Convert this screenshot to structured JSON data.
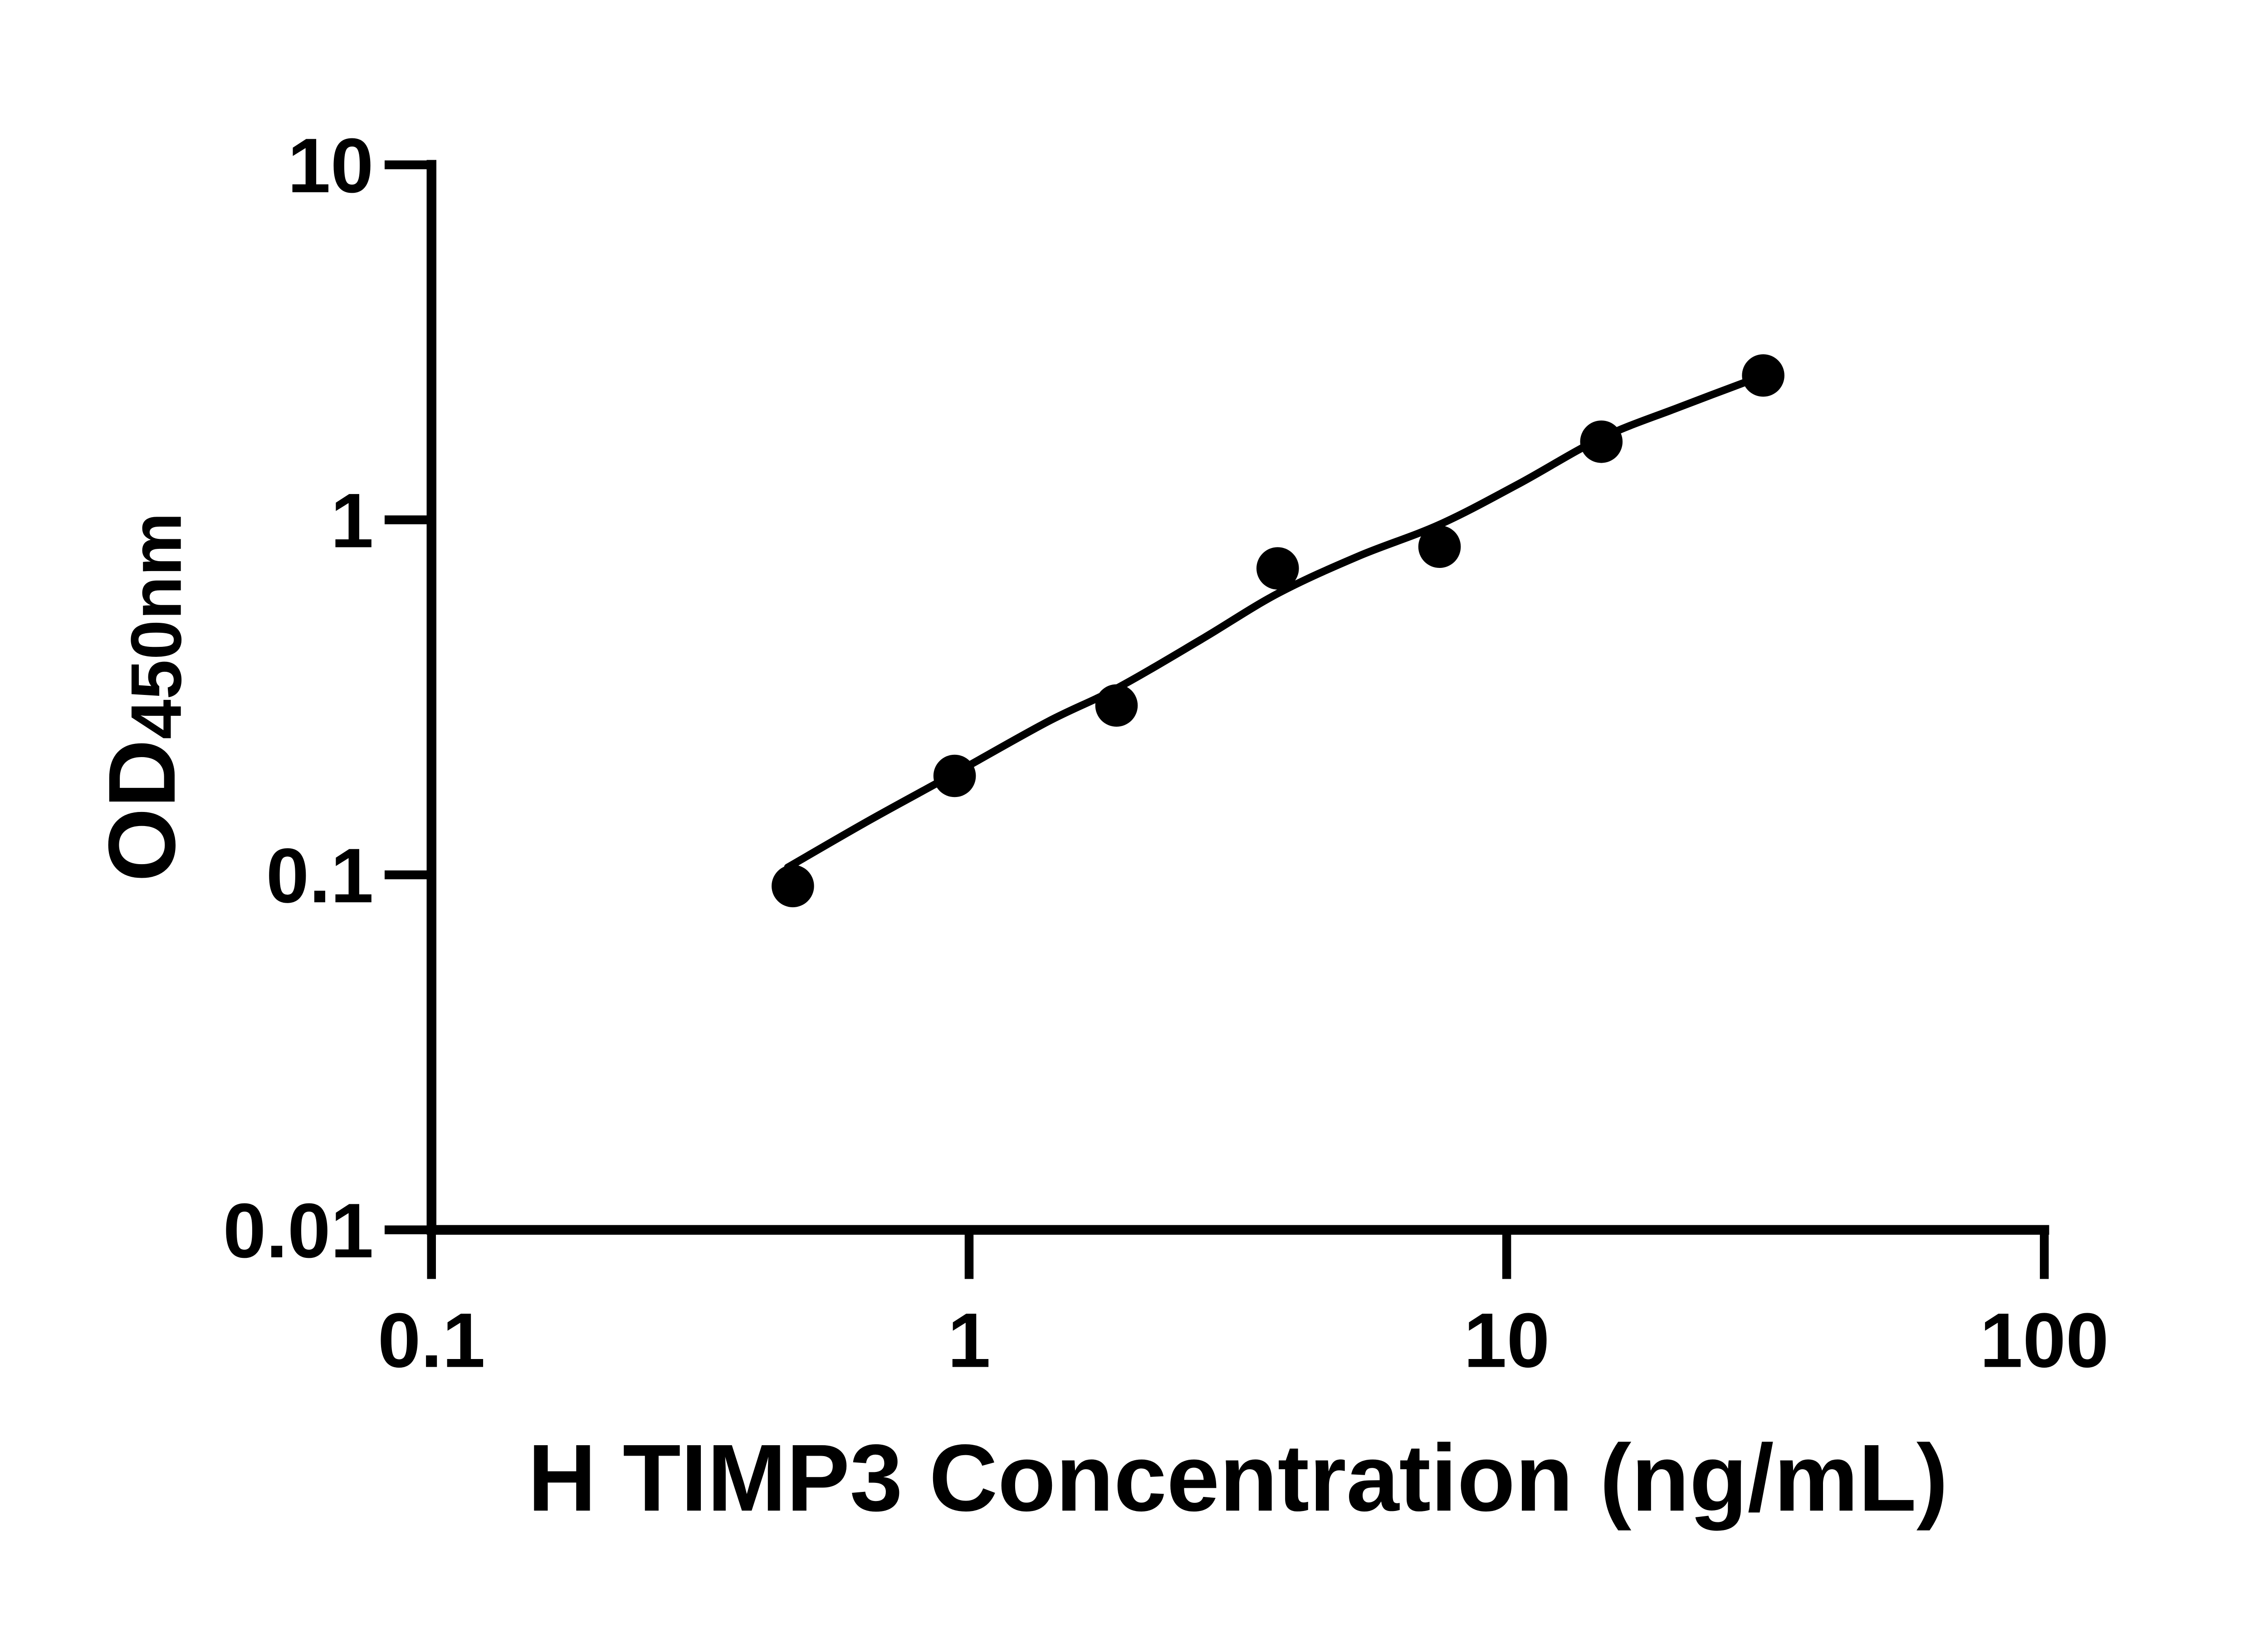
{
  "chart_data": {
    "type": "scatter",
    "title": "",
    "xlabel": "H TIMP3 Concentration (ng/mL)",
    "ylabel": "OD450nm",
    "ylabel_main": "OD",
    "ylabel_sub": "450nm",
    "x_scale": "log",
    "y_scale": "log",
    "xlim": [
      0.1,
      100
    ],
    "ylim": [
      0.01,
      10
    ],
    "grid": false,
    "legend": "none",
    "background_color": "#ffffff",
    "axis_color": "#000000",
    "marker_color": "#000000",
    "line_color": "#000000",
    "x_ticks": [
      {
        "value": 0.1,
        "label": "0.1"
      },
      {
        "value": 1,
        "label": "1"
      },
      {
        "value": 10,
        "label": "10"
      },
      {
        "value": 100,
        "label": "100"
      }
    ],
    "y_ticks": [
      {
        "value": 10,
        "label": "10"
      },
      {
        "value": 1,
        "label": "1"
      },
      {
        "value": 0.1,
        "label": "0.1"
      },
      {
        "value": 0.01,
        "label": "0.01"
      }
    ],
    "points": [
      {
        "x": 0.47,
        "y": 0.093
      },
      {
        "x": 0.94,
        "y": 0.19
      },
      {
        "x": 1.88,
        "y": 0.3
      },
      {
        "x": 3.75,
        "y": 0.73
      },
      {
        "x": 7.5,
        "y": 0.84
      },
      {
        "x": 15,
        "y": 1.66
      },
      {
        "x": 30,
        "y": 2.55
      }
    ],
    "fit_curve": [
      [
        0.46,
        0.105
      ],
      [
        0.65,
        0.142
      ],
      [
        0.94,
        0.193
      ],
      [
        1.4,
        0.27
      ],
      [
        1.88,
        0.335
      ],
      [
        2.7,
        0.46
      ],
      [
        3.75,
        0.62
      ],
      [
        5.3,
        0.79
      ],
      [
        7.5,
        0.97
      ],
      [
        10.5,
        1.26
      ],
      [
        15,
        1.7
      ],
      [
        21,
        2.08
      ],
      [
        30,
        2.55
      ]
    ]
  }
}
